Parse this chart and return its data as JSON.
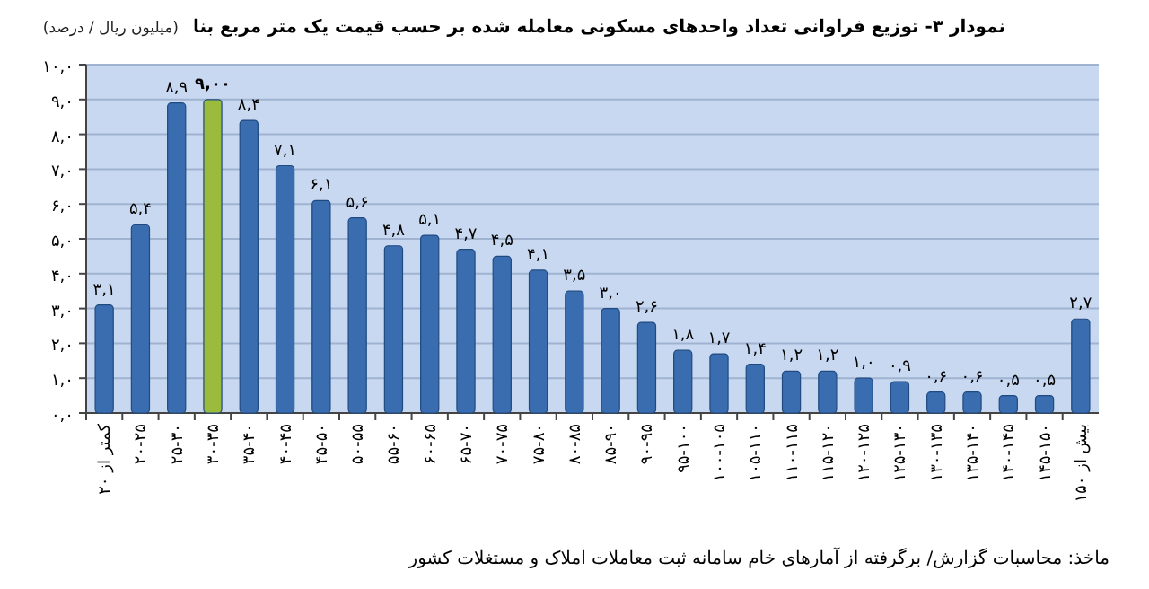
{
  "chart_data": {
    "type": "bar",
    "title": "نمودار ۳- توزیع فراوانی تعداد واحدهای مسکونی معامله شده بر حسب قیمت یک متر مربع بنا",
    "subtitle": "(میلیون ریال / درصد)",
    "categories": [
      "کمتر از ۲۰",
      "۲۰-۲۵",
      "۲۵-۳۰",
      "۳۰-۳۵",
      "۳۵-۴۰",
      "۴۰-۴۵",
      "۴۵-۵۰",
      "۵۰-۵۵",
      "۵۵-۶۰",
      "۶۰-۶۵",
      "۶۵-۷۰",
      "۷۰-۷۵",
      "۷۵-۸۰",
      "۸۰-۸۵",
      "۸۵-۹۰",
      "۹۰-۹۵",
      "۹۵-۱۰۰",
      "۱۰۰-۱۰۵",
      "۱۰۵-۱۱۰",
      "۱۱۰-۱۱۵",
      "۱۱۵-۱۲۰",
      "۱۲۰-۱۲۵",
      "۱۲۵-۱۳۰",
      "۱۳۰-۱۳۵",
      "۱۳۵-۱۴۰",
      "۱۴۰-۱۴۵",
      "۱۴۵-۱۵۰",
      "بیش از ۱۵۰"
    ],
    "values": [
      3.1,
      5.4,
      8.9,
      9.0,
      8.4,
      7.1,
      6.1,
      5.6,
      4.8,
      5.1,
      4.7,
      4.5,
      4.1,
      3.5,
      3.0,
      2.6,
      1.8,
      1.7,
      1.4,
      1.2,
      1.2,
      1.0,
      0.9,
      0.6,
      0.6,
      0.5,
      0.5,
      2.7
    ],
    "value_labels": [
      "۳,۱",
      "۵,۴",
      "۸,۹",
      "۹,۰۰",
      "۸,۴",
      "۷,۱",
      "۶,۱",
      "۵,۶",
      "۴,۸",
      "۵,۱",
      "۴,۷",
      "۴,۵",
      "۴,۱",
      "۳,۵",
      "۳,۰",
      "۲,۶",
      "۱,۸",
      "۱,۷",
      "۱,۴",
      "۱,۲",
      "۱,۲",
      "۱,۰",
      "۰,۹",
      "۰,۶",
      "۰,۶",
      "۰,۵",
      "۰,۵",
      "۲,۷"
    ],
    "colors": [
      "#3a6db0",
      "#3a6db0",
      "#3a6db0",
      "#9bbb3c",
      "#3a6db0",
      "#3a6db0",
      "#3a6db0",
      "#3a6db0",
      "#3a6db0",
      "#3a6db0",
      "#3a6db0",
      "#3a6db0",
      "#3a6db0",
      "#3a6db0",
      "#3a6db0",
      "#3a6db0",
      "#3a6db0",
      "#3a6db0",
      "#3a6db0",
      "#3a6db0",
      "#3a6db0",
      "#3a6db0",
      "#3a6db0",
      "#3a6db0",
      "#3a6db0",
      "#3a6db0",
      "#3a6db0",
      "#3a6db0"
    ],
    "ylim": [
      0,
      10
    ],
    "yticks": [
      {
        "value": 0,
        "label": "۰,۰"
      },
      {
        "value": 1,
        "label": "۱,۰"
      },
      {
        "value": 2,
        "label": "۲,۰"
      },
      {
        "value": 3,
        "label": "۳,۰"
      },
      {
        "value": 4,
        "label": "۴,۰"
      },
      {
        "value": 5,
        "label": "۵,۰"
      },
      {
        "value": 6,
        "label": "۶,۰"
      },
      {
        "value": 7,
        "label": "۷,۰"
      },
      {
        "value": 8,
        "label": "۸,۰"
      },
      {
        "value": 9,
        "label": "۹,۰"
      },
      {
        "value": 10,
        "label": "۱۰,۰"
      }
    ],
    "grid": "y",
    "annotations": [
      "ماخذ: محاسبات گزارش/ برگرفته از آمارهای خام سامانه ثبت معاملات املاک و مستغلات کشور"
    ]
  }
}
